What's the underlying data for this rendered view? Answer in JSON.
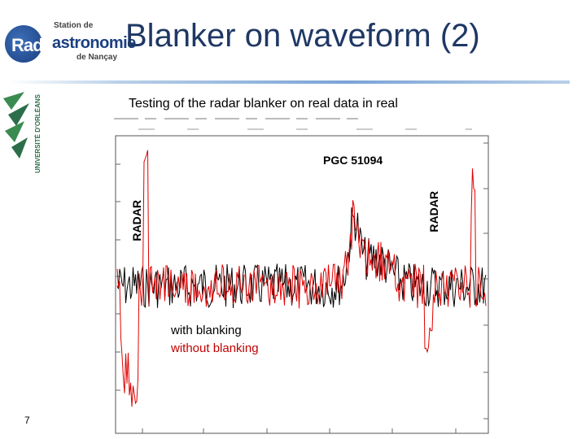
{
  "logo": {
    "radio": "Radio",
    "station": "Station de",
    "astro": "astronomie",
    "nancay": "de Nançay"
  },
  "university": {
    "name": "UNIVERSITÉ D'ORLÉANS"
  },
  "title": "Blanker on waveform (2)",
  "subtitle": "Testing of the radar blanker on real data in real",
  "plot": {
    "source_label": "PGC 51094",
    "radar_left": "RADAR",
    "radar_right": "RADAR",
    "legend_with": "with blanking",
    "legend_without": "without blanking",
    "colors": {
      "with_blanking": "#000000",
      "without_blanking": "#e00000"
    }
  },
  "page_number": "7"
}
